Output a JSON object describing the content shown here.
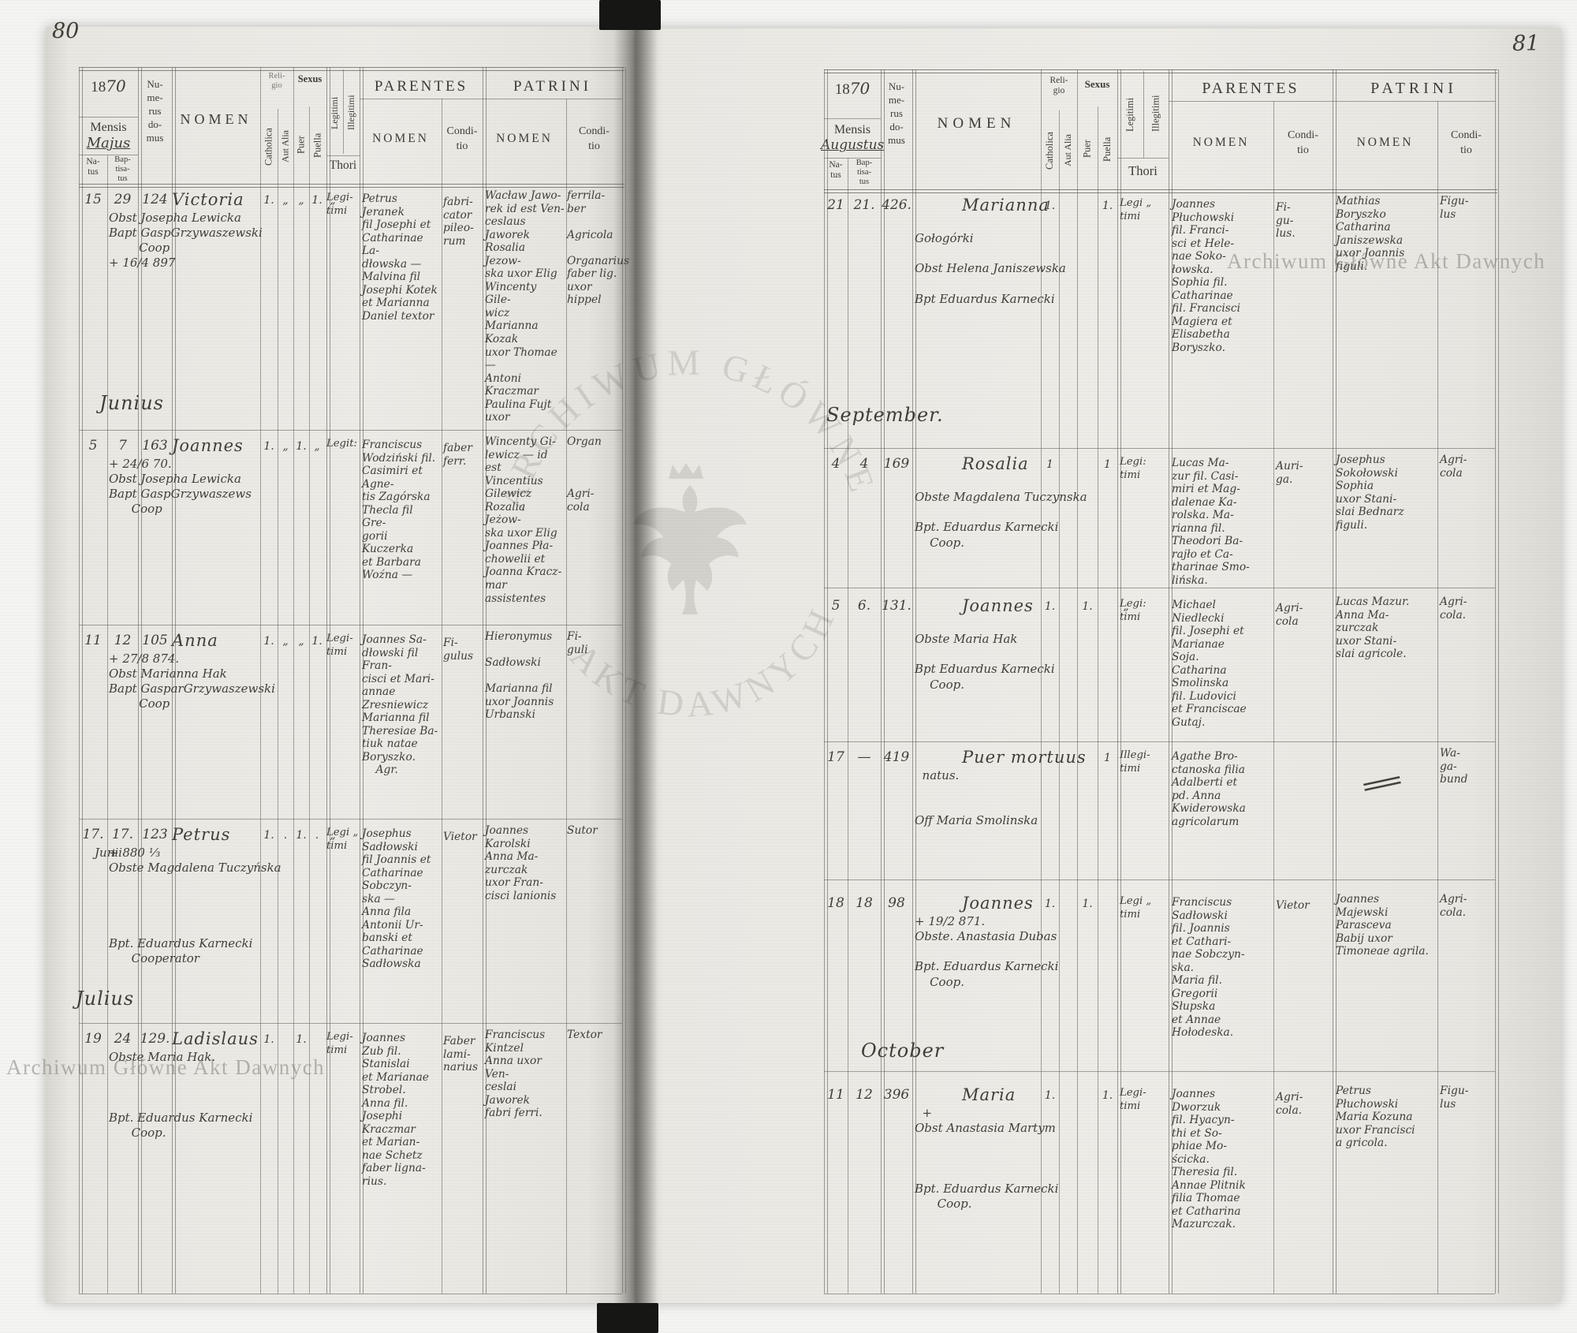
{
  "header": {
    "year_printed": "18",
    "year_hw": "70",
    "mensis": "Mensis",
    "natus": "Na-\ntus",
    "baptisatus": "Bap-\ntisa-\ntus",
    "numerus": "Nu-\nme-\nrus\ndo-\nmus",
    "nomen": "NOMEN",
    "religio": "Reli-\ngio",
    "catholica": "Catholica",
    "aut_alia": "Aut Alia",
    "sexus": "Sexus",
    "puer": "Puer",
    "puella": "Puella",
    "legitimi": "Legitimi",
    "illegitimi": "Illegitimi",
    "thori": "Thori",
    "parentes": "PARENTES",
    "patrini": "PATRINI",
    "conditio": "Condi-\ntio"
  },
  "watermarks": {
    "archive_line": "Archiwum Główne Akt Dawnych",
    "stamp_top": "ARCHIWUM GŁÓWNE",
    "stamp_bottom": "AKT DAWNYCH"
  },
  "left_page": {
    "page_number": "80",
    "month_hw": "Majus",
    "months": [
      "Junius",
      "Julius"
    ],
    "rows": [
      {
        "natus": "15",
        "bapt": "29",
        "domus": "124",
        "nomen": "Victoria\nObst Josepha Lewicka\nBapt GaspGrzywaszewski\n        Coop\n+ 16/4 897",
        "cath": "1.",
        "alia": "„",
        "puer": "„",
        "puella": "1.",
        "thori": "„",
        "legit": "Legi-\ntimi",
        "parentes": "Petrus Jeranek\nfil Josephi et\nCatharinae La-\ndłowska —\nMalvina fil\nJosephi Kotek\net Marianna\nDaniel textor",
        "parentes_cond": "fabri-\ncator\npileo-\nrum",
        "patrini": "Wacław Jawo-\nrek id est Ven-\nceslaus Jaworek\nRosalia Jezow-\nska uxor Elig\nWincenty Gile-\nwicz\nMarianna Kozak\nuxor Thomae —\nAntoni Kraczmar\nPaulina Fujt uxor",
        "patrini_cond": "ferrila-\nber\n\nAgricola\n\nOrganarius\nfaber lig.\nuxor hippel"
      },
      {
        "natus": "5",
        "bapt": "7",
        "domus": "163",
        "nomen": "Joannes\n+ 24/6 70.\nObst Josepha Lewicka\nBapt GaspGrzywaszews\n      Coop",
        "cath": "1.",
        "alia": "„",
        "puer": "1.",
        "puella": "„",
        "legit": "Legit:",
        "parentes": "Franciscus\nWodziński fil.\nCasimiri et Agne-\ntis Zagórska\nThecla fil Gre-\ngorii Kuczerka\net Barbara\nWoźna —",
        "parentes_cond": "faber\nferr.",
        "patrini": "Wincenty Gi-\nlewicz — id est\nVincentius\nGilewicz\nRozalia Jeżow-\nska uxor Elig\nJoannes Pła-\nchowelii et\nJoanna Kracz-\nmar assistentes",
        "patrini_cond": "Organ\n\n\n\nAgri-\ncola"
      },
      {
        "natus": "11",
        "bapt": "12",
        "domus": "105",
        "nomen": "Anna\n+ 27/8 874.\nObst Marianna Hak\nBapt GasparGrzywaszewski\n        Coop",
        "cath": "1.",
        "alia": "„",
        "puer": "„",
        "puella": "1.",
        "legit": "Legi-\ntimi",
        "parentes": "Joannes Sa-\ndłowski fil Fran-\ncisci et Mari-\nannae Zresniewicz\nMarianna fil\nTheresiae Ba-\ntiuk natae\nBoryszko.\n    Agr.",
        "parentes_cond": "Fi-\ngulus",
        "patrini": "Hieronymus\n\nSadłowski\n\nMarianna fil\nuxor Joannis\nUrbanski",
        "patrini_cond": "Fi-\nguli"
      },
      {
        "natus": "17.",
        "bapt": "17.",
        "domus": "123",
        "date_note": "Junii",
        "nomen": "Petrus\n+ 880 ⅓\nObste Magdalena Tuczyńska\n\n\n\n\nBpt. Eduardus Karnecki\n      Cooperator",
        "cath": "1.",
        "alia": ".",
        "puer": "1.",
        "puella": ".",
        "thori": "„",
        "legit": "Legi „\ntimi",
        "parentes": "Josephus\nSadłowski\nfil Joannis et\nCatharinae\nSobczyn-\nska —\nAnna fila\nAntonii Ur-\nbanski et\nCatharinae\nSadłowska",
        "parentes_cond": "Vietor",
        "patrini": "Joannes\nKarolski\nAnna Ma-\nzurczak\nuxor Fran-\ncisci lanionis",
        "patrini_cond": "Sutor"
      },
      {
        "natus": "19",
        "bapt": "24",
        "domus": "129.",
        "nomen": "Ladislaus\nObste Maria Hak.\n\n\n\nBpt. Eduardus Karnecki\n      Coop.",
        "cath": "1.",
        "puer": "1.",
        "legit": "Legi-\ntimi",
        "parentes": "Joannes\nZub fil.\nStanislai\net Marianae\nStrobel.\nAnna fil.\nJosephi\nKraczmar\net Marian-\nnae Schetz\nfaber ligna-\nrius.",
        "parentes_cond": "Faber\nlami-\nnarius",
        "patrini": "Franciscus\nKintzel\nAnna uxor Ven-\nceslai Jaworek\nfabri ferri.",
        "patrini_cond": "Textor"
      }
    ]
  },
  "right_page": {
    "page_number": "81",
    "month_hw": "Augustus",
    "months": [
      "September.",
      "October"
    ],
    "rows": [
      {
        "natus": "21",
        "bapt": "21.",
        "domus": "426.",
        "nomen": "Marianna\n\nGołogórki\n\nObst Helena Janiszewska\n\nBpt Eduardus Karnecki",
        "cath": "1.",
        "puella": "1.",
        "legit": "Legi „\ntimi",
        "parentes": "Joannes\nPłuchowski\nfil. Franci-\nsci et Hele-\nnae Soko-\nłowska.\nSophia fil.\nCatharinae\nfil. Francisci\nMagiera et\nElisabetha\nBoryszko.",
        "parentes_cond": "Fi-\ngu-\nlus.",
        "patrini": "Mathias\nBoryszko\nCatharina\nJaniszewska\nuxor Joannis\nfiguli.",
        "patrini_cond": "Figu-\nlus"
      },
      {
        "natus": "4",
        "bapt": "4",
        "domus": "169",
        "nomen": "Rosalia\n\nObste Magdalena Tuczynska\n\nBpt. Eduardus Karnecki\n    Coop.",
        "cath": "1",
        "puella": "1",
        "legit": "Legi:\ntimi",
        "parentes": "Lucas Ma-\nzur fil. Casi-\nmiri et Mag-\ndalenae Ka-\nrolska. Ma-\nrianna fil.\nTheodori Ba-\nrajło et Ca-\ntharinae Smo-\nlińska.",
        "parentes_cond": "Auri-\nga.",
        "patrini": "Josephus\nSokołowski\nSophia\nuxor Stani-\nslai Bednarz\nfiguli.",
        "patrini_cond": "Agri-\ncola"
      },
      {
        "natus": "5",
        "bapt": "6.",
        "domus": "131.",
        "nomen": "Joannes\n\nObste Maria Hak\n\nBpt Eduardus Karnecki\n    Coop.",
        "cath": "1.",
        "puer": "1.",
        "thori": "„",
        "legit": "Legi:\ntimi",
        "parentes": "Michael\nNiedlecki\nfil. Josephi et\nMarianae\nSoja.\nCatharina\nSmolinska\nfil. Ludovici\net Franciscae\nGutaj.",
        "parentes_cond": "Agri-\ncola",
        "patrini": "Lucas Mazur.\nAnna Ma-\nzurczak\nuxor Stani-\nslai agricole.",
        "patrini_cond": "Agri-\ncola."
      },
      {
        "natus": "17",
        "bapt": "—",
        "domus": "419",
        "nomen": "Puer mortuus\n  natus.\n\n\nOff Maria Smolinska",
        "puella": "1",
        "legit": "Illegi-\ntimi",
        "parentes": "Agathe Bro-\nctanoska filia\nAdalberti et\npd. Anna\nKwiderowska\nagricolarum",
        "patrini_mark": "=",
        "patrini_cond": "Wa-\nga-\nbund"
      },
      {
        "natus": "18",
        "bapt": "18",
        "domus": "98",
        "nomen": "Joannes\n+ 19/2 871.\nObste. Anastasia Dubas\n\nBpt. Eduardus Karnecki\n    Coop.",
        "cath": "1.",
        "puer": "1.",
        "legit": "Legi „\ntimi",
        "parentes": "Franciscus\nSadłowski\nfil. Joannis\net Cathari-\nnae Sobczyn-\nska.\nMaria fil.\nGregorii\nSłupska\net Annae\nHołodeska.",
        "parentes_cond": "Vietor",
        "patrini": "Joannes\nMajewski\nParasceva\nBabij uxor\nTimoneae agrila.",
        "patrini_cond": "Agri-\ncola."
      },
      {
        "natus": "11",
        "bapt": "12",
        "domus": "396",
        "nomen": "Maria\n  +\nObst Anastasia Martym\n\n\n\nBpt. Eduardus Karnecki\n      Coop.",
        "cath": "1.",
        "puella": "1.",
        "legit": "Legi-\ntimi",
        "parentes": "Joannes\nDworzuk\nfil. Hyacyn-\nthi et So-\nphiae Mo-\nścicka.\nTheresia fil.\nAnnae Plitnik\nfilia Thomae\net Catharina\nMazurczak.",
        "parentes_cond": "Agri-\ncola.",
        "patrini": "Petrus\nPłuchowski\nMaria Kozuna\nuxor Francisci\na gricola.",
        "patrini_cond": "Figu-\nlus"
      }
    ]
  }
}
